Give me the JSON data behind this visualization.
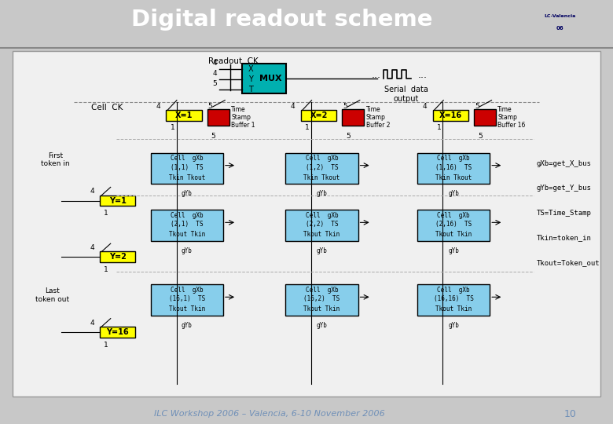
{
  "title": "Digital readout scheme",
  "title_bg": "#000080",
  "title_color": "#ffffff",
  "footer_text": "ILC Workshop 2006 – Valencia, 6-10 November 2006",
  "footer_page": "10",
  "bg_color": "#f0f0f0",
  "main_bg": "#e8e8e8",
  "readout_ck_label": "Readout  CK",
  "serial_data_label": "Serial  data\noutput",
  "cell_ck_label": "Cell  CK",
  "x_labels": [
    "X=1",
    "X=2",
    "X=16"
  ],
  "y_labels": [
    "Y=1",
    "Y=2",
    "Y=16"
  ],
  "ts_labels": [
    "Time\nStamp\nBuffer 1",
    "Time\nStamp\nBuffer 2",
    "Time\nStamp\nBuffer 16"
  ],
  "cell_rows": [
    [
      "(1,1)",
      "(1,2)",
      "(1,16)"
    ],
    [
      "(2,1)",
      "(2,2)",
      "(2,16)"
    ],
    [
      "(16,1)",
      "(16,2)",
      "(16,16)"
    ]
  ],
  "legend_texts": [
    "gXb=get_X_bus",
    "gYb=get_Y_bus",
    "TS=Time_Stamp",
    "Tkin=token_in",
    "Tkout=Token_out"
  ],
  "row_labels": [
    "First\ntoken in",
    null,
    "Last\ntoken out"
  ],
  "cell_row3_label": [
    "Tkin Tkout",
    "Tkin Tkout",
    "Tkin Tkout"
  ],
  "cell_row12_label": [
    "Tkout Tkin",
    "Tkout Tkin",
    "Tkout Tkin"
  ]
}
